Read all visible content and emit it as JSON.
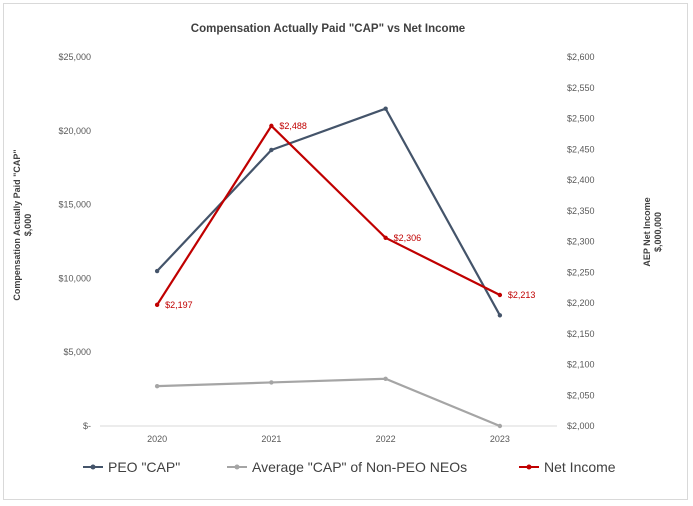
{
  "chart_data": {
    "type": "line",
    "title": "Compensation Actually Paid \"CAP\" vs Net Income",
    "categories": [
      "2020",
      "2021",
      "2022",
      "2023"
    ],
    "y_left": {
      "label_line1": "Compensation Actually Paid \"CAP\"",
      "label_line2": "$,000",
      "ylim": [
        0,
        25000
      ],
      "ticks": [
        0,
        5000,
        10000,
        15000,
        20000,
        25000
      ],
      "tick_labels": [
        "$-",
        "$5,000",
        "$10,000",
        "$15,000",
        "$20,000",
        "$25,000"
      ]
    },
    "y_right": {
      "label_line1": "AEP Net Income",
      "label_line2": "$,000,000",
      "ylim": [
        2000,
        2600
      ],
      "ticks": [
        2000,
        2050,
        2100,
        2150,
        2200,
        2250,
        2300,
        2350,
        2400,
        2450,
        2500,
        2550,
        2600
      ],
      "tick_labels": [
        "$2,000",
        "$2,050",
        "$2,100",
        "$2,150",
        "$2,200",
        "$2,250",
        "$2,300",
        "$2,350",
        "$2,400",
        "$2,450",
        "$2,500",
        "$2,550",
        "$2,600"
      ]
    },
    "series": [
      {
        "name": "PEO \"CAP\"",
        "axis": "left",
        "color": "#44546a",
        "values": [
          10500,
          18700,
          21500,
          7500
        ]
      },
      {
        "name": "Average \"CAP\" of Non-PEO NEOs",
        "axis": "left",
        "color": "#a5a5a5",
        "values": [
          2700,
          2950,
          3200,
          0
        ]
      },
      {
        "name": "Net Income",
        "axis": "right",
        "color": "#c00000",
        "values": [
          2197,
          2488,
          2306,
          2213
        ],
        "data_labels": [
          "$2,197",
          "$2,488",
          "$2,306",
          "$2,213"
        ]
      }
    ],
    "legend": "bottom",
    "grid": false
  }
}
